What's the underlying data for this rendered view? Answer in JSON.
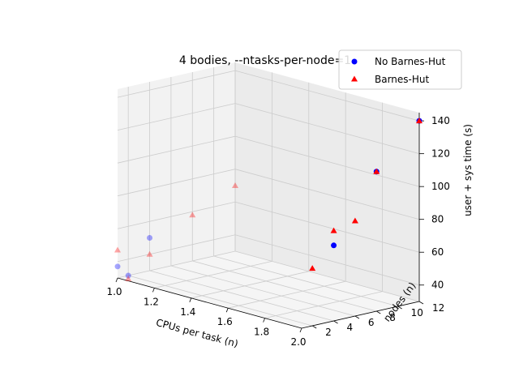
{
  "chart_data": {
    "type": "scatter",
    "title": "4 bodies, --ntasks-per-node=1",
    "xlabel": "CPUs per task (n)",
    "ylabel": "nodes (n)",
    "zlabel": "user + sys time (s)",
    "xlim": [
      1.0,
      2.0
    ],
    "ylim": [
      1,
      12
    ],
    "zlim": [
      30,
      145
    ],
    "xticks": [
      "1.0",
      "1.2",
      "1.4",
      "1.6",
      "1.8",
      "2.0"
    ],
    "yticks": [
      "2",
      "4",
      "6",
      "8",
      "10",
      "12"
    ],
    "zticks": [
      "40",
      "60",
      "80",
      "100",
      "120",
      "140"
    ],
    "grid": true,
    "legend_position": "top-right",
    "colors": {
      "no_bh": "#0000ff",
      "bh": "#ff0000"
    },
    "series": [
      {
        "name": "No Barnes-Hut",
        "marker": "circle",
        "points": [
          {
            "x": 1.0,
            "y": 1,
            "z": 37
          },
          {
            "x": 1.0,
            "y": 2,
            "z": 30
          },
          {
            "x": 1.0,
            "y": 4,
            "z": 50
          },
          {
            "x": 2.0,
            "y": 4,
            "z": 76
          },
          {
            "x": 2.0,
            "y": 8,
            "z": 115
          },
          {
            "x": 2.0,
            "y": 12,
            "z": 140
          }
        ]
      },
      {
        "name": "Barnes-Hut",
        "marker": "triangle",
        "points": [
          {
            "x": 1.0,
            "y": 1,
            "z": 47
          },
          {
            "x": 1.0,
            "y": 2,
            "z": 28
          },
          {
            "x": 1.0,
            "y": 4,
            "z": 40
          },
          {
            "x": 1.0,
            "y": 8,
            "z": 58
          },
          {
            "x": 1.0,
            "y": 12,
            "z": 70
          },
          {
            "x": 2.0,
            "y": 2,
            "z": 65
          },
          {
            "x": 2.0,
            "y": 4,
            "z": 85
          },
          {
            "x": 2.0,
            "y": 6,
            "z": 88
          },
          {
            "x": 2.0,
            "y": 8,
            "z": 115
          },
          {
            "x": 2.0,
            "y": 12,
            "z": 140
          }
        ]
      }
    ]
  }
}
